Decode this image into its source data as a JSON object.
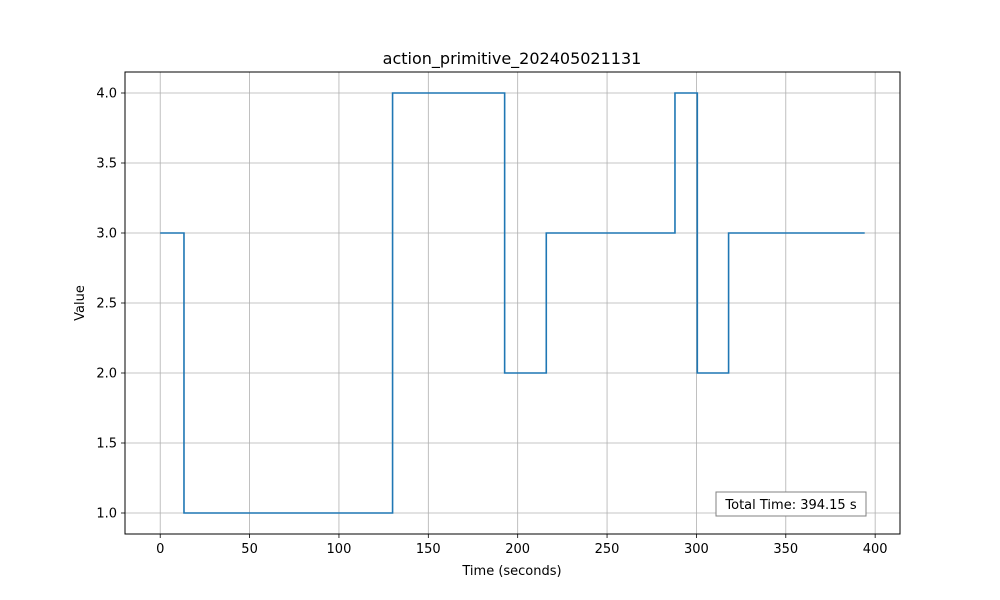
{
  "chart_data": {
    "type": "line",
    "step": "post",
    "title": "action_primitive_202405021131",
    "xlabel": "Time (seconds)",
    "ylabel": "Value",
    "xlim": [
      -19.7,
      413.9
    ],
    "ylim": [
      0.85,
      4.15
    ],
    "xticks": [
      0,
      50,
      100,
      150,
      200,
      250,
      300,
      350,
      400
    ],
    "xtick_labels": [
      "0",
      "50",
      "100",
      "150",
      "200",
      "250",
      "300",
      "350",
      "400"
    ],
    "yticks": [
      1.0,
      1.5,
      2.0,
      2.5,
      3.0,
      3.5,
      4.0
    ],
    "ytick_labels": [
      "1.0",
      "1.5",
      "2.0",
      "2.5",
      "3.0",
      "3.5",
      "4.0"
    ],
    "grid": true,
    "series": [
      {
        "color": "#1f77b4",
        "x": [
          0,
          13.3,
          130,
          192.7,
          216,
          288,
          300.5,
          318,
          394.15
        ],
        "y": [
          3,
          1,
          4,
          2,
          3,
          4,
          2,
          3,
          3
        ]
      }
    ],
    "annotation": "Total Time: 394.15 s",
    "annotation_position": "bottom-right"
  }
}
